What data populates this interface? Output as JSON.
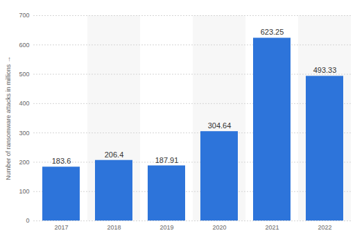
{
  "chart_data": {
    "type": "bar",
    "y_label": "Number of ransomware attacks in millions",
    "categories": [
      "2017",
      "2018",
      "2019",
      "2020",
      "2021",
      "2022"
    ],
    "values": [
      183.6,
      206.4,
      187.91,
      304.64,
      623.25,
      493.33
    ],
    "color": "#2d74da",
    "ylim": [
      0,
      700
    ],
    "yticks": [
      0,
      100,
      200,
      300,
      400,
      500,
      600,
      700
    ],
    "grid": true,
    "data_labels": true
  }
}
